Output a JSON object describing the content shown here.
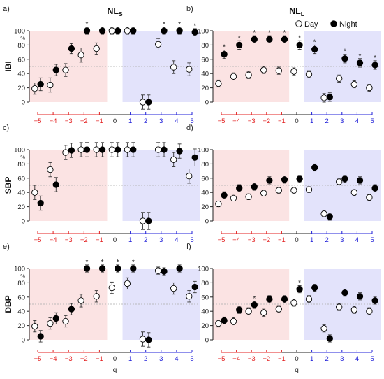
{
  "legend": {
    "day_label": "Day",
    "night_label": "Night",
    "placement": "top-right"
  },
  "colors": {
    "neg_region": "#fbe3e3",
    "pos_region": "#e3e3fb",
    "neg_axis": "#e32020",
    "pos_axis": "#2020d8",
    "zero_axis": "#222222",
    "dash_line": "#aaaaaa"
  },
  "chart_data": [
    {
      "panel": "a)",
      "title_base": "NL",
      "title_sub": "S",
      "ylabel": "IBI",
      "yunit": "%",
      "type": "scatter",
      "ylim": [
        0,
        100
      ],
      "yticks": [
        0,
        20,
        40,
        60,
        80,
        100
      ],
      "grid": false,
      "hline": 50,
      "xlabel": "",
      "xlim": [
        -5,
        5
      ],
      "xticks": [
        -5,
        -4,
        -3,
        -2,
        -1,
        0,
        1,
        2,
        3,
        4,
        5
      ],
      "series": [
        {
          "name": "Day",
          "x": [
            -5,
            -4,
            -3,
            -2,
            -1,
            0,
            1,
            2,
            3,
            4,
            5
          ],
          "y": [
            19,
            24,
            45,
            66,
            75,
            100,
            100,
            0,
            81,
            49,
            46
          ],
          "err": [
            8,
            10,
            9,
            10,
            8,
            5,
            5,
            10,
            8,
            9,
            9
          ]
        },
        {
          "name": "Night",
          "x": [
            -5,
            -4,
            -3,
            -2,
            -1,
            0,
            1,
            2,
            3,
            4,
            5
          ],
          "y": [
            25,
            45,
            75,
            100,
            100,
            100,
            100,
            0,
            100,
            100,
            98
          ],
          "err": [
            9,
            8,
            7,
            5,
            5,
            5,
            5,
            10,
            5,
            5,
            5
          ]
        }
      ],
      "star_x": [
        -2,
        3,
        4,
        5
      ]
    },
    {
      "panel": "b)",
      "title_base": "NL",
      "title_sub": "L",
      "ylabel": "",
      "yunit": "",
      "type": "scatter",
      "ylim": [
        0,
        100
      ],
      "yticks": [
        0,
        20,
        40,
        60,
        80,
        100
      ],
      "grid": false,
      "hline": 50,
      "xlabel": "",
      "xlim": [
        -5,
        5
      ],
      "xticks": [
        -5,
        -4,
        -3,
        -2,
        -1,
        0,
        1,
        2,
        3,
        4,
        5
      ],
      "series": [
        {
          "name": "Day",
          "x": [
            -5,
            -4,
            -3,
            -2,
            -1,
            0,
            1,
            2,
            3,
            4,
            5
          ],
          "y": [
            26,
            36,
            38,
            45,
            44,
            43,
            39,
            6,
            33,
            25,
            20
          ],
          "err": [
            5,
            5,
            5,
            5,
            5,
            5,
            5,
            6,
            5,
            5,
            5
          ]
        },
        {
          "name": "Night",
          "x": [
            -5,
            -4,
            -3,
            -2,
            -1,
            0,
            1,
            2,
            3,
            4,
            5
          ],
          "y": [
            67,
            80,
            88,
            88,
            88,
            80,
            74,
            7,
            61,
            55,
            52
          ],
          "err": [
            6,
            6,
            5,
            5,
            5,
            6,
            6,
            6,
            6,
            6,
            6
          ]
        }
      ],
      "star_x": [
        -5,
        -4,
        -3,
        -2,
        -1,
        0,
        1,
        3,
        4,
        5
      ]
    },
    {
      "panel": "c)",
      "title_base": "",
      "title_sub": "",
      "ylabel": "SBP",
      "yunit": "%",
      "type": "scatter",
      "ylim": [
        0,
        100
      ],
      "yticks": [
        0,
        20,
        40,
        60,
        80,
        100
      ],
      "grid": false,
      "hline": 50,
      "xlabel": "",
      "xlim": [
        -5,
        5
      ],
      "xticks": [
        -5,
        -4,
        -3,
        -2,
        -1,
        0,
        1,
        2,
        3,
        4,
        5
      ],
      "series": [
        {
          "name": "Day",
          "x": [
            -5,
            -4,
            -3,
            -2,
            -1,
            0,
            1,
            2,
            3,
            4,
            5
          ],
          "y": [
            40,
            72,
            96,
            100,
            100,
            100,
            100,
            0,
            100,
            86,
            63
          ],
          "err": [
            10,
            10,
            10,
            10,
            10,
            10,
            10,
            12,
            10,
            10,
            10
          ]
        },
        {
          "name": "Night",
          "x": [
            -5,
            -4,
            -3,
            -2,
            -1,
            0,
            1,
            2,
            3,
            4,
            5
          ],
          "y": [
            25,
            51,
            99,
            100,
            100,
            100,
            100,
            0,
            100,
            98,
            89
          ],
          "err": [
            10,
            10,
            10,
            10,
            10,
            10,
            10,
            12,
            10,
            10,
            12
          ]
        }
      ],
      "star_x": []
    },
    {
      "panel": "d)",
      "title_base": "",
      "title_sub": "",
      "ylabel": "",
      "yunit": "",
      "type": "scatter",
      "ylim": [
        0,
        100
      ],
      "yticks": [
        0,
        20,
        40,
        60,
        80,
        100
      ],
      "grid": false,
      "hline": 50,
      "xlabel": "",
      "xlim": [
        -5,
        5
      ],
      "xticks": [
        -5,
        -4,
        -3,
        -2,
        -1,
        0,
        1,
        2,
        3,
        4,
        5
      ],
      "series": [
        {
          "name": "Day",
          "x": [
            -5,
            -4,
            -3,
            -2,
            -1,
            0,
            1,
            2,
            3,
            4,
            5
          ],
          "y": [
            24,
            32,
            34,
            39,
            43,
            43,
            44,
            10,
            55,
            40,
            33
          ],
          "err": [
            4,
            4,
            4,
            4,
            4,
            4,
            4,
            4,
            4,
            4,
            4
          ]
        },
        {
          "name": "Night",
          "x": [
            -5,
            -4,
            -3,
            -2,
            -1,
            0,
            1,
            2,
            3,
            4,
            5
          ],
          "y": [
            36,
            46,
            48,
            57,
            58,
            59,
            75,
            6,
            59,
            57,
            46
          ],
          "err": [
            5,
            5,
            5,
            5,
            5,
            5,
            5,
            5,
            5,
            5,
            5
          ]
        }
      ],
      "star_x": []
    },
    {
      "panel": "e)",
      "title_base": "",
      "title_sub": "",
      "ylabel": "DBP",
      "yunit": "%",
      "type": "scatter",
      "ylim": [
        0,
        100
      ],
      "yticks": [
        0,
        20,
        40,
        60,
        80,
        100
      ],
      "grid": false,
      "hline": 50,
      "xlabel": "q",
      "xlim": [
        -5,
        5
      ],
      "xticks": [
        -5,
        -4,
        -3,
        -2,
        -1,
        0,
        1,
        2,
        3,
        4,
        5
      ],
      "series": [
        {
          "name": "Day",
          "x": [
            -5,
            -4,
            -3,
            -2,
            -1,
            0,
            1,
            2,
            3,
            4,
            5
          ],
          "y": [
            19,
            23,
            26,
            55,
            61,
            73,
            79,
            1,
            97,
            72,
            61
          ],
          "err": [
            8,
            8,
            8,
            9,
            8,
            8,
            8,
            10,
            5,
            8,
            8
          ]
        },
        {
          "name": "Night",
          "x": [
            -5,
            -4,
            -3,
            -2,
            -1,
            0,
            1,
            2,
            3,
            4,
            5
          ],
          "y": [
            5,
            30,
            43,
            100,
            100,
            100,
            100,
            0,
            96,
            100,
            74
          ],
          "err": [
            8,
            8,
            8,
            5,
            5,
            5,
            5,
            10,
            5,
            5,
            8
          ]
        }
      ],
      "star_x": [
        -2,
        -1,
        0,
        1
      ]
    },
    {
      "panel": "f)",
      "title_base": "",
      "title_sub": "",
      "ylabel": "",
      "yunit": "",
      "type": "scatter",
      "ylim": [
        0,
        100
      ],
      "yticks": [
        0,
        20,
        40,
        60,
        80,
        100
      ],
      "grid": false,
      "hline": 50,
      "xlabel": "q",
      "xlim": [
        -5,
        5
      ],
      "xticks": [
        -5,
        -4,
        -3,
        -2,
        -1,
        0,
        1,
        2,
        3,
        4,
        5
      ],
      "series": [
        {
          "name": "Day",
          "x": [
            -5,
            -4,
            -3,
            -2,
            -1,
            0,
            1,
            2,
            3,
            4,
            5
          ],
          "y": [
            23,
            26,
            40,
            38,
            43,
            52,
            57,
            16,
            46,
            42,
            40
          ],
          "err": [
            5,
            5,
            5,
            5,
            5,
            5,
            5,
            5,
            5,
            5,
            5
          ]
        },
        {
          "name": "Night",
          "x": [
            -5,
            -4,
            -3,
            -2,
            -1,
            0,
            1,
            2,
            3,
            4,
            5
          ],
          "y": [
            27,
            42,
            49,
            57,
            57,
            71,
            73,
            2,
            66,
            61,
            55
          ],
          "err": [
            5,
            5,
            5,
            5,
            5,
            5,
            5,
            5,
            5,
            5,
            5
          ]
        }
      ],
      "star_x": [
        -3,
        0
      ]
    }
  ]
}
